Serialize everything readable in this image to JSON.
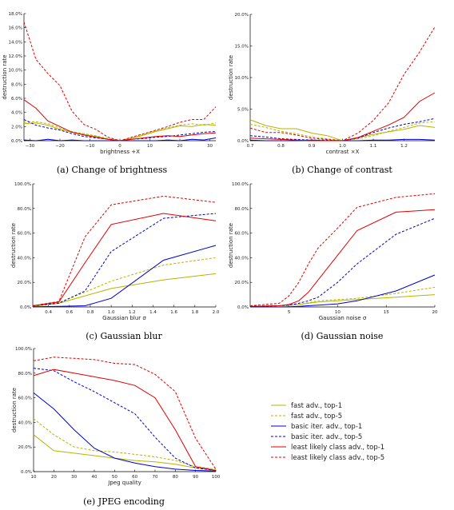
{
  "series_styles": [
    {
      "name": "fast adv., top-1",
      "color": "#b5b500",
      "dash": false
    },
    {
      "name": "fast adv., top-5",
      "color": "#b5b500",
      "dash": true
    },
    {
      "name": "basic iter. adv., top-1",
      "color": "#0000cc",
      "dash": false
    },
    {
      "name": "basic iter. adv., top-5",
      "color": "#0000cc",
      "dash": true
    },
    {
      "name": "least likely class adv., top-1",
      "color": "#e00000",
      "dash": false
    },
    {
      "name": "least likely class adv., top-5",
      "color": "#e00000",
      "dash": true
    }
  ],
  "chart_data": [
    {
      "type": "line",
      "caption": "(a) Change of brightness",
      "xlabel": "brightness +X",
      "ylabel": "destruction rate",
      "xlim": [
        -32,
        32
      ],
      "ylim": [
        0,
        18
      ],
      "xticks": [
        -30,
        -20,
        -10,
        0,
        10,
        20,
        30
      ],
      "xtick_labels": [
        "−30",
        "−20",
        "−10",
        "0",
        "10",
        "20",
        "30"
      ],
      "yticks": [
        0,
        2,
        4,
        6,
        8,
        10,
        12,
        14,
        16,
        18
      ],
      "ytick_labels": [
        "0.0%",
        "2.0%",
        "4.0%",
        "6.0%",
        "8.0%",
        "10.0%",
        "12.0%",
        "14.0%",
        "16.0%",
        "18.0%"
      ],
      "x": [
        -32,
        -28,
        -24,
        -20,
        -16,
        -12,
        -8,
        -4,
        0,
        4,
        8,
        12,
        16,
        20,
        24,
        28,
        32
      ],
      "series": [
        {
          "values": [
            2.4,
            2.5,
            2.2,
            1.6,
            1.2,
            0.9,
            0.6,
            0.2,
            0,
            0.3,
            0.8,
            1.3,
            1.7,
            2.1,
            2.0,
            2.3,
            2.2
          ]
        },
        {
          "values": [
            2.6,
            2.7,
            2.4,
            1.8,
            1.3,
            1.0,
            0.7,
            0.3,
            0,
            0.4,
            0.9,
            1.4,
            1.8,
            2.2,
            2.4,
            2.2,
            2.5
          ]
        },
        {
          "values": [
            0.1,
            0.0,
            0.2,
            0.0,
            0.1,
            0.0,
            0.0,
            0.0,
            0,
            0.0,
            0.0,
            0.0,
            0.1,
            0.0,
            0.2,
            0.1,
            0.4
          ]
        },
        {
          "values": [
            3.0,
            2.2,
            1.8,
            1.5,
            1.0,
            0.6,
            0.4,
            0.2,
            0,
            0.2,
            0.3,
            0.5,
            0.6,
            0.8,
            1.0,
            1.2,
            1.3
          ]
        },
        {
          "values": [
            5.8,
            4.6,
            2.8,
            2.0,
            1.2,
            0.8,
            0.5,
            0.2,
            0,
            0.2,
            0.4,
            0.6,
            0.7,
            0.6,
            0.8,
            1.0,
            1.1
          ]
        },
        {
          "values": [
            16.8,
            11.5,
            9.5,
            7.8,
            4.2,
            2.3,
            1.6,
            0.5,
            0,
            0.5,
            1.0,
            1.5,
            2.0,
            2.6,
            3.0,
            3.0,
            4.8
          ]
        }
      ]
    },
    {
      "type": "line",
      "caption": "(b) Change of contrast",
      "xlabel": "contrast ×X",
      "ylabel": "destruction rate",
      "xlim": [
        0.7,
        1.3
      ],
      "ylim": [
        0,
        20
      ],
      "xticks": [
        0.7,
        0.8,
        0.9,
        1.0,
        1.1,
        1.2
      ],
      "xtick_labels": [
        "0.7",
        "0.8",
        "0.9",
        "1.0",
        "1.1",
        "1.2"
      ],
      "yticks": [
        0,
        5,
        10,
        15,
        20
      ],
      "ytick_labels": [
        "0.0%",
        "5.0%",
        "10.0%",
        "15.0%",
        "20.0%"
      ],
      "x": [
        0.7,
        0.75,
        0.8,
        0.85,
        0.9,
        0.95,
        1.0,
        1.05,
        1.1,
        1.15,
        1.2,
        1.25,
        1.3
      ],
      "series": [
        {
          "values": [
            3.3,
            2.4,
            1.9,
            1.9,
            1.2,
            0.8,
            0.0,
            0.5,
            1.0,
            1.4,
            1.8,
            2.4,
            2.1
          ]
        },
        {
          "values": [
            2.6,
            2.1,
            1.5,
            1.1,
            0.6,
            0.3,
            0.0,
            0.3,
            0.8,
            1.5,
            2.1,
            2.8,
            3.0
          ]
        },
        {
          "values": [
            0.1,
            0.0,
            0.0,
            0.0,
            0.1,
            0.0,
            0.0,
            0.0,
            0.1,
            0.1,
            0.2,
            0.2,
            0.1
          ]
        },
        {
          "values": [
            0.8,
            0.6,
            0.3,
            0.2,
            0.1,
            0.1,
            0.0,
            0.4,
            1.3,
            2.0,
            2.6,
            3.0,
            3.5
          ]
        },
        {
          "values": [
            0.4,
            0.3,
            0.2,
            0.1,
            0.0,
            0.0,
            0.0,
            0.5,
            1.5,
            2.5,
            3.7,
            6.2,
            7.6
          ]
        },
        {
          "values": [
            2.0,
            1.3,
            1.3,
            0.9,
            0.4,
            0.2,
            0.0,
            1.2,
            3.2,
            6.0,
            10.5,
            14.0,
            18.0
          ]
        }
      ]
    },
    {
      "type": "line",
      "caption": "(c) Gaussian blur",
      "xlabel": "Gaussian blur σ",
      "ylabel": "destruction rate",
      "xlim": [
        0.25,
        2.0
      ],
      "ylim": [
        0,
        100
      ],
      "xticks": [
        0.4,
        0.6,
        0.8,
        1.0,
        1.2,
        1.4,
        1.6,
        1.8,
        2.0
      ],
      "xtick_labels": [
        "0.4",
        "0.6",
        "0.8",
        "1.0",
        "1.2",
        "1.4",
        "1.6",
        "1.8",
        "2.0"
      ],
      "yticks": [
        0,
        20,
        40,
        60,
        80,
        100
      ],
      "ytick_labels": [
        "0.0%",
        "20.0%",
        "40.0%",
        "60.0%",
        "80.0%",
        "100.0%"
      ],
      "x": [
        0.25,
        0.5,
        0.75,
        1.0,
        1.5,
        2.0
      ],
      "series": [
        {
          "values": [
            0.5,
            3,
            9,
            15,
            22,
            27
          ]
        },
        {
          "values": [
            0.5,
            3.5,
            12,
            21,
            34,
            40
          ]
        },
        {
          "values": [
            0.2,
            0.5,
            1,
            7,
            38,
            50
          ]
        },
        {
          "values": [
            1,
            3,
            13,
            45,
            72,
            76
          ]
        },
        {
          "values": [
            1,
            4,
            36,
            67,
            76,
            70
          ]
        },
        {
          "values": [
            1,
            4.5,
            57,
            83,
            90,
            85
          ]
        }
      ]
    },
    {
      "type": "line",
      "caption": "(d) Gaussian noise",
      "xlabel": "Gaussian noise σ",
      "ylabel": "destruction rate",
      "xlim": [
        1,
        20
      ],
      "ylim": [
        0,
        100
      ],
      "xticks": [
        5,
        10,
        15,
        20
      ],
      "xtick_labels": [
        "5",
        "10",
        "15",
        "20"
      ],
      "yticks": [
        0,
        20,
        40,
        60,
        80,
        100
      ],
      "ytick_labels": [
        "0.0%",
        "20.0%",
        "40.0%",
        "60.0%",
        "80.0%",
        "100.0%"
      ],
      "x": [
        1,
        4,
        5,
        6,
        7,
        8,
        10,
        12,
        16,
        20
      ],
      "series": [
        {
          "values": [
            0.5,
            1,
            1.5,
            2,
            3,
            4,
            5,
            6,
            8,
            10
          ]
        },
        {
          "values": [
            0.5,
            1,
            1.5,
            2,
            3.5,
            5,
            6,
            7,
            11,
            16
          ]
        },
        {
          "values": [
            0,
            0,
            0.2,
            0.5,
            1,
            1.5,
            2.5,
            5,
            13,
            26
          ]
        },
        {
          "values": [
            0.5,
            1,
            1.5,
            3,
            5,
            8,
            20,
            35,
            59,
            72
          ]
        },
        {
          "values": [
            0.5,
            1,
            2,
            5,
            12,
            22,
            42,
            62,
            77,
            79
          ]
        },
        {
          "values": [
            1,
            3,
            9,
            20,
            35,
            48,
            64,
            81,
            89,
            92
          ]
        }
      ]
    },
    {
      "type": "line",
      "caption": "(e) JPEG encoding",
      "xlabel": "Jpeg quality",
      "ylabel": "destruction rate",
      "xlim": [
        10,
        100
      ],
      "ylim": [
        0,
        100
      ],
      "xticks": [
        10,
        20,
        30,
        40,
        50,
        60,
        70,
        80,
        90,
        100
      ],
      "xtick_labels": [
        "10",
        "20",
        "30",
        "40",
        "50",
        "60",
        "70",
        "80",
        "90",
        "100"
      ],
      "yticks": [
        0,
        20,
        40,
        60,
        80,
        100
      ],
      "ytick_labels": [
        "0.0%",
        "20.0%",
        "40.0%",
        "60.0%",
        "80.0%",
        "100.0%"
      ],
      "x": [
        10,
        20,
        30,
        40,
        50,
        60,
        70,
        80,
        90,
        100
      ],
      "series": [
        {
          "values": [
            30,
            17,
            15,
            13,
            11,
            9,
            8,
            6,
            3,
            1
          ]
        },
        {
          "values": [
            43,
            30,
            20,
            17,
            16,
            14,
            12,
            9,
            4,
            2
          ]
        },
        {
          "values": [
            64,
            51,
            34,
            19,
            11,
            7,
            4,
            2,
            1,
            0.5
          ]
        },
        {
          "values": [
            84,
            82,
            73,
            65,
            56,
            47,
            28,
            11,
            3,
            1
          ]
        },
        {
          "values": [
            78,
            83,
            80,
            77,
            74,
            70,
            60,
            34,
            4,
            1
          ]
        },
        {
          "values": [
            90,
            93,
            92,
            91,
            88,
            87,
            79,
            65,
            27,
            2
          ]
        }
      ]
    }
  ]
}
